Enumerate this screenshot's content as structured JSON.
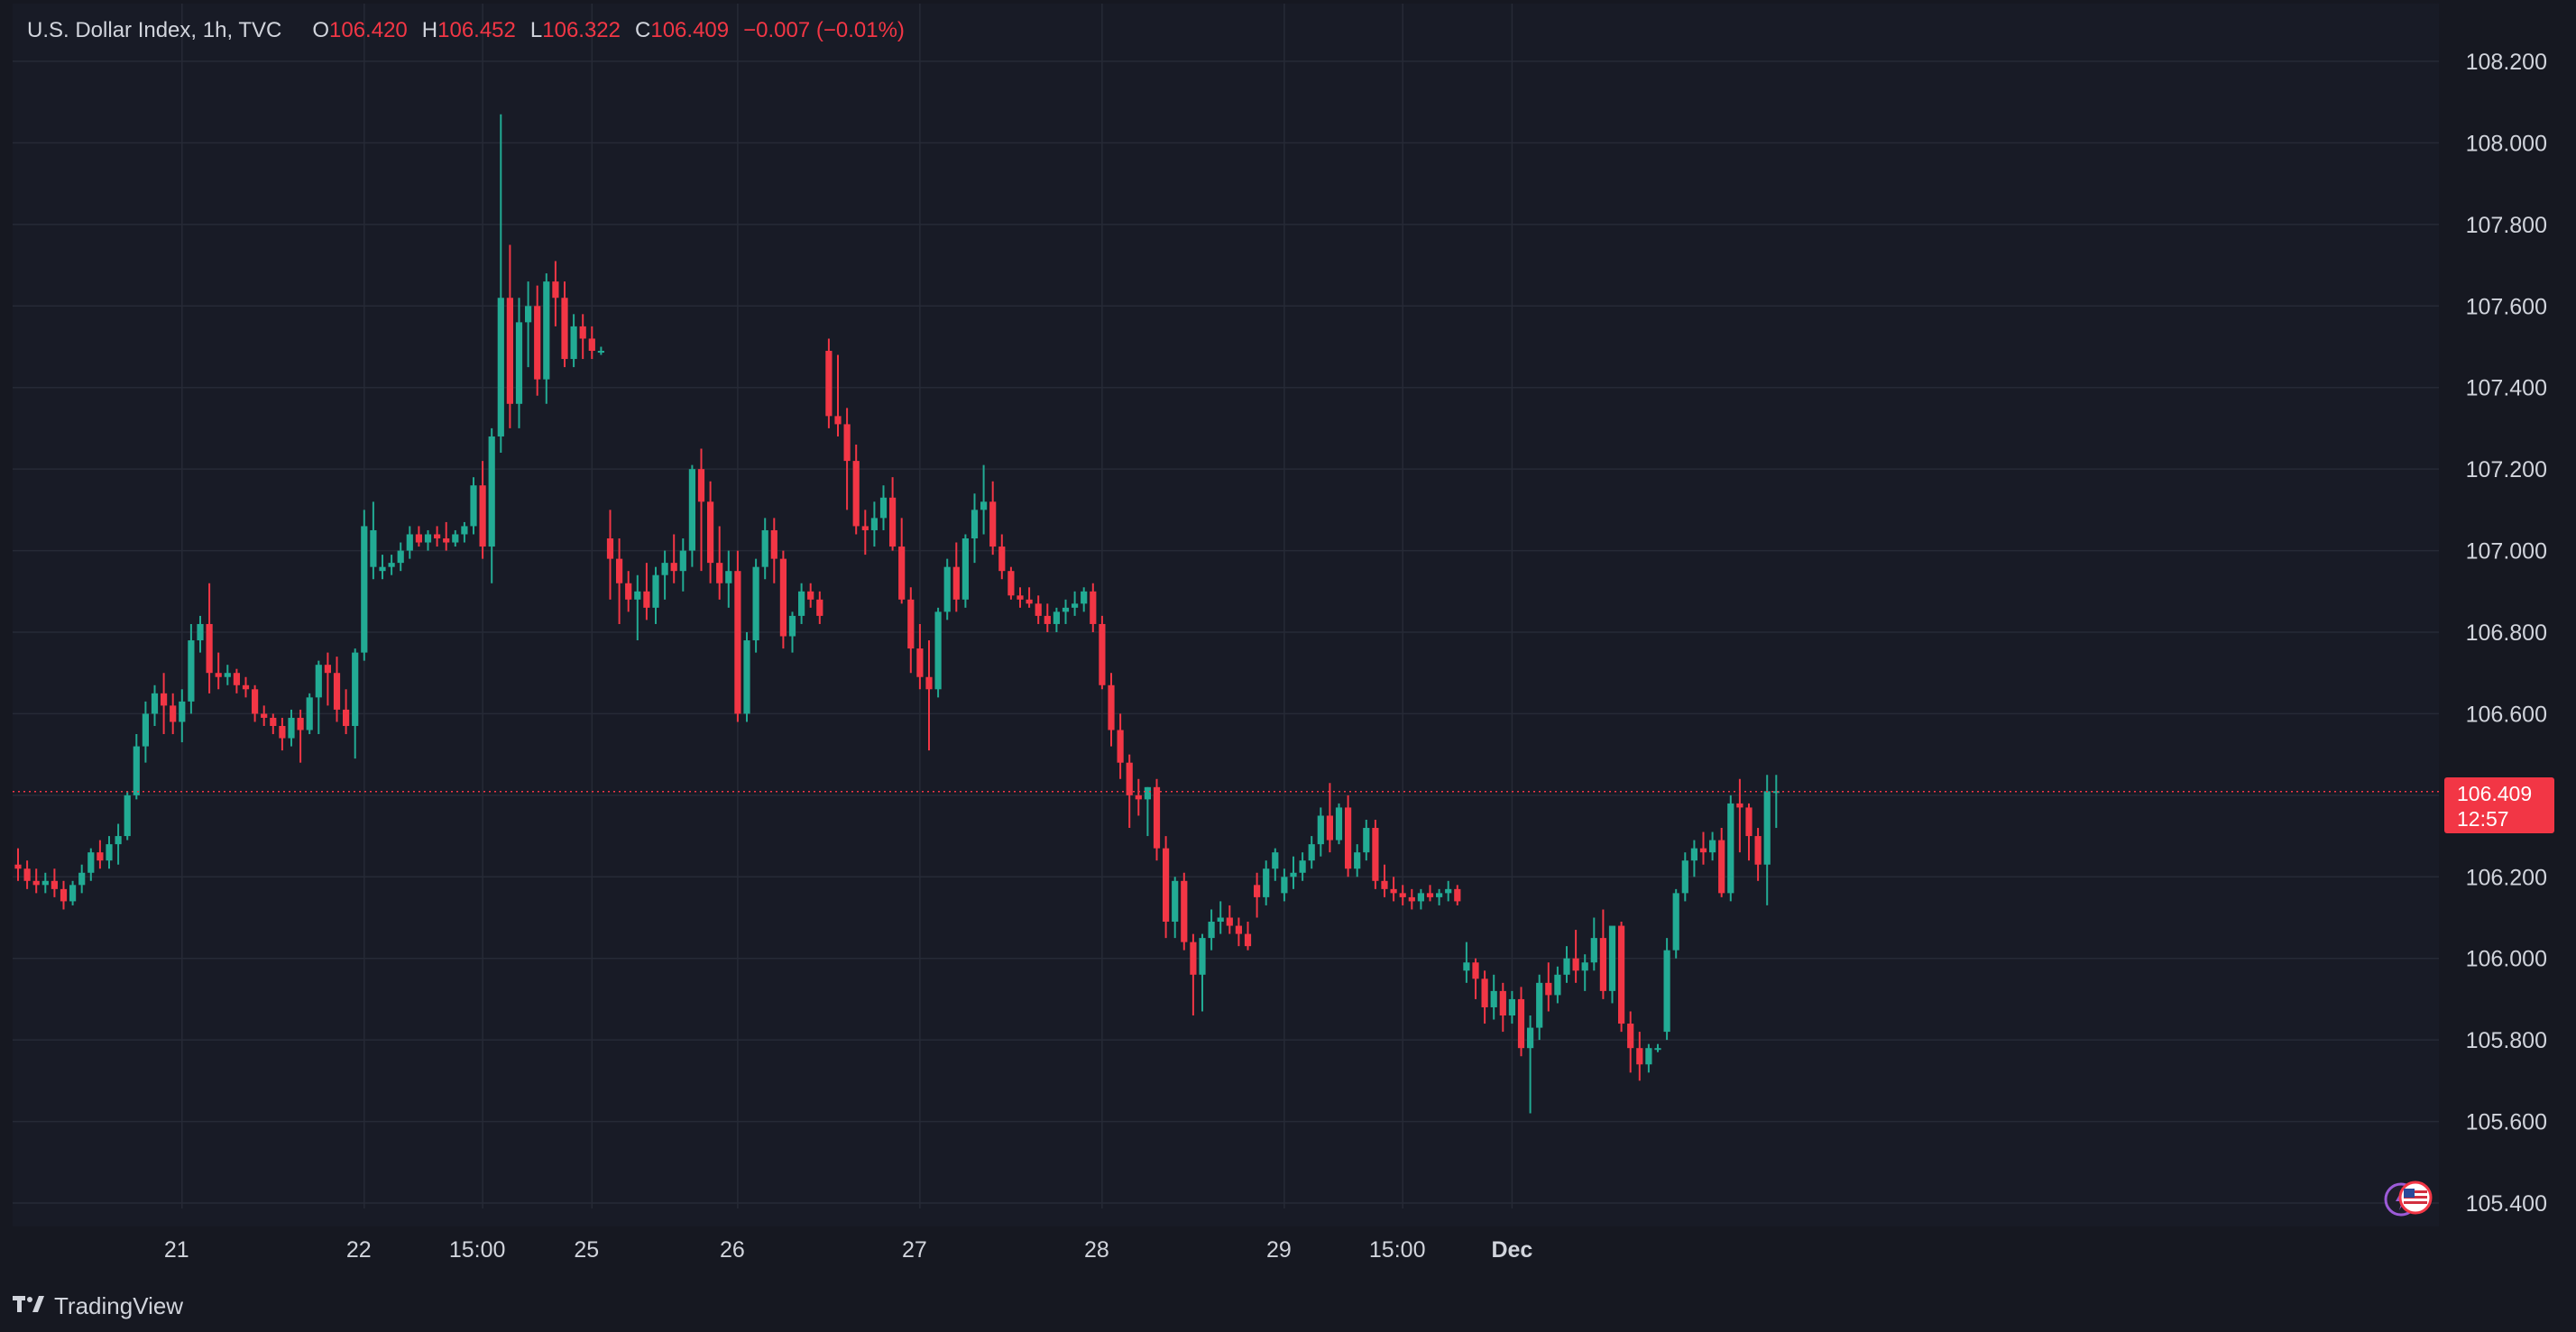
{
  "legend": {
    "symbol": "U.S. Dollar Index, 1h, TVC",
    "open_label": "O",
    "open": "106.420",
    "high_label": "H",
    "high": "106.452",
    "low_label": "L",
    "low": "106.322",
    "close_label": "C",
    "close": "106.409",
    "change": "−0.007 (−0.01%)"
  },
  "last_price": {
    "value": "106.409",
    "countdown": "12:57"
  },
  "brand": {
    "name": "TradingView"
  },
  "colors": {
    "background": "#161821",
    "up": "#22ab94",
    "down": "#f23645",
    "grid": "#262a36",
    "text": "#d1d4dc"
  },
  "icons": [
    "tradingview-logo-icon",
    "economic-events-icon",
    "us-flag-icon"
  ],
  "chart_data": {
    "type": "candlestick",
    "title": "U.S. Dollar Index, 1h, TVC",
    "x_tick_labels": [
      "21",
      "22",
      "15:00",
      "25",
      "26",
      "27",
      "28",
      "29",
      "15:00",
      "Dec"
    ],
    "x_tick_candle_index": [
      18,
      38,
      51,
      63,
      79,
      99,
      119,
      139,
      152,
      164
    ],
    "y_ticks": [
      105.4,
      105.6,
      105.8,
      106.0,
      106.2,
      106.4,
      106.6,
      106.8,
      107.0,
      107.2,
      107.4,
      107.6,
      107.8,
      108.0,
      108.2
    ],
    "y_tick_labels": [
      "105.400",
      "105.600",
      "105.800",
      "106.000",
      "106.200",
      "106.400",
      "106.600",
      "106.800",
      "107.000",
      "107.200",
      "107.400",
      "107.600",
      "107.800",
      "108.000",
      "108.200"
    ],
    "ylim": [
      105.3,
      108.4
    ],
    "last_price": 106.409,
    "candles": [
      [
        106.23,
        106.27,
        106.19,
        106.22
      ],
      [
        106.22,
        106.24,
        106.17,
        106.19
      ],
      [
        106.19,
        106.22,
        106.16,
        106.18
      ],
      [
        106.18,
        106.21,
        106.16,
        106.19
      ],
      [
        106.19,
        106.22,
        106.15,
        106.17
      ],
      [
        106.17,
        106.19,
        106.12,
        106.14
      ],
      [
        106.14,
        106.19,
        106.13,
        106.18
      ],
      [
        106.18,
        106.23,
        106.16,
        106.21
      ],
      [
        106.21,
        106.27,
        106.19,
        106.26
      ],
      [
        106.26,
        106.29,
        106.22,
        106.24
      ],
      [
        106.24,
        106.3,
        106.22,
        106.28
      ],
      [
        106.28,
        106.33,
        106.23,
        106.3
      ],
      [
        106.3,
        106.41,
        106.29,
        106.4
      ],
      [
        106.4,
        106.55,
        106.39,
        106.52
      ],
      [
        106.52,
        106.63,
        106.48,
        106.6
      ],
      [
        106.6,
        106.67,
        106.57,
        106.65
      ],
      [
        106.65,
        106.7,
        106.55,
        106.62
      ],
      [
        106.62,
        106.65,
        106.55,
        106.58
      ],
      [
        106.58,
        106.66,
        106.53,
        106.63
      ],
      [
        106.63,
        106.82,
        106.6,
        106.78
      ],
      [
        106.78,
        106.84,
        106.75,
        106.82
      ],
      [
        106.82,
        106.92,
        106.65,
        106.7
      ],
      [
        106.7,
        106.75,
        106.66,
        106.69
      ],
      [
        106.69,
        106.72,
        106.67,
        106.7
      ],
      [
        106.7,
        106.71,
        106.65,
        106.67
      ],
      [
        106.67,
        106.69,
        106.64,
        106.66
      ],
      [
        106.66,
        106.67,
        106.58,
        106.6
      ],
      [
        106.6,
        106.62,
        106.57,
        106.59
      ],
      [
        106.59,
        106.6,
        106.55,
        106.57
      ],
      [
        106.57,
        106.59,
        106.51,
        106.54
      ],
      [
        106.54,
        106.61,
        106.52,
        106.59
      ],
      [
        106.59,
        106.61,
        106.48,
        106.56
      ],
      [
        106.56,
        106.65,
        106.55,
        106.64
      ],
      [
        106.64,
        106.73,
        106.55,
        106.72
      ],
      [
        106.72,
        106.75,
        106.62,
        106.7
      ],
      [
        106.7,
        106.74,
        106.58,
        106.61
      ],
      [
        106.61,
        106.66,
        106.55,
        106.57
      ],
      [
        106.57,
        106.76,
        106.49,
        106.75
      ],
      [
        106.75,
        107.1,
        106.73,
        107.06
      ],
      [
        106.96,
        107.12,
        106.93,
        107.05
      ],
      [
        106.95,
        106.99,
        106.93,
        106.96
      ],
      [
        106.96,
        106.99,
        106.94,
        106.97
      ],
      [
        106.97,
        107.02,
        106.95,
        107.0
      ],
      [
        107.0,
        107.06,
        106.98,
        107.04
      ],
      [
        107.04,
        107.06,
        107.01,
        107.02
      ],
      [
        107.02,
        107.05,
        107.0,
        107.04
      ],
      [
        107.04,
        107.06,
        107.01,
        107.03
      ],
      [
        107.03,
        107.07,
        107.0,
        107.02
      ],
      [
        107.02,
        107.05,
        107.01,
        107.04
      ],
      [
        107.04,
        107.07,
        107.02,
        107.06
      ],
      [
        107.06,
        107.18,
        107.04,
        107.16
      ],
      [
        107.16,
        107.22,
        106.98,
        107.01
      ],
      [
        107.01,
        107.3,
        106.92,
        107.28
      ],
      [
        107.28,
        108.07,
        107.24,
        107.62
      ],
      [
        107.62,
        107.75,
        107.3,
        107.36
      ],
      [
        107.36,
        107.62,
        107.3,
        107.56
      ],
      [
        107.56,
        107.66,
        107.45,
        107.6
      ],
      [
        107.6,
        107.65,
        107.38,
        107.42
      ],
      [
        107.42,
        107.68,
        107.36,
        107.66
      ],
      [
        107.66,
        107.71,
        107.55,
        107.62
      ],
      [
        107.62,
        107.66,
        107.45,
        107.47
      ],
      [
        107.47,
        107.58,
        107.45,
        107.55
      ],
      [
        107.55,
        107.58,
        107.47,
        107.52
      ],
      [
        107.52,
        107.55,
        107.47,
        107.49
      ],
      [
        107.49,
        107.5,
        107.48,
        107.49
      ],
      [
        107.03,
        107.1,
        106.88,
        106.98
      ],
      [
        106.98,
        107.03,
        106.82,
        106.92
      ],
      [
        106.92,
        106.95,
        106.85,
        106.88
      ],
      [
        106.88,
        106.94,
        106.78,
        106.9
      ],
      [
        106.9,
        106.97,
        106.83,
        106.86
      ],
      [
        106.86,
        106.96,
        106.82,
        106.94
      ],
      [
        106.94,
        107.0,
        106.88,
        106.97
      ],
      [
        106.97,
        107.04,
        106.92,
        106.95
      ],
      [
        106.95,
        107.03,
        106.9,
        107.0
      ],
      [
        107.0,
        107.21,
        106.96,
        107.2
      ],
      [
        107.2,
        107.25,
        106.95,
        107.12
      ],
      [
        107.12,
        107.17,
        106.92,
        106.97
      ],
      [
        106.97,
        107.06,
        106.88,
        106.92
      ],
      [
        106.92,
        107.0,
        106.86,
        106.95
      ],
      [
        106.95,
        107.0,
        106.58,
        106.6
      ],
      [
        106.6,
        106.8,
        106.58,
        106.78
      ],
      [
        106.78,
        106.98,
        106.75,
        106.96
      ],
      [
        106.96,
        107.08,
        106.93,
        107.05
      ],
      [
        107.05,
        107.08,
        106.92,
        106.98
      ],
      [
        106.98,
        107.0,
        106.76,
        106.79
      ],
      [
        106.79,
        106.85,
        106.75,
        106.84
      ],
      [
        106.84,
        106.92,
        106.82,
        106.9
      ],
      [
        106.9,
        106.92,
        106.86,
        106.88
      ],
      [
        106.88,
        106.9,
        106.82,
        106.84
      ],
      [
        107.49,
        107.52,
        107.3,
        107.33
      ],
      [
        107.33,
        107.48,
        107.28,
        107.31
      ],
      [
        107.31,
        107.35,
        107.1,
        107.22
      ],
      [
        107.22,
        107.26,
        107.04,
        107.06
      ],
      [
        107.06,
        107.1,
        106.99,
        107.05
      ],
      [
        107.05,
        107.12,
        107.01,
        107.08
      ],
      [
        107.08,
        107.16,
        107.05,
        107.13
      ],
      [
        107.13,
        107.18,
        107.0,
        107.01
      ],
      [
        107.01,
        107.08,
        106.87,
        106.88
      ],
      [
        106.88,
        106.91,
        106.7,
        106.76
      ],
      [
        106.76,
        106.82,
        106.66,
        106.69
      ],
      [
        106.69,
        106.78,
        106.51,
        106.66
      ],
      [
        106.66,
        106.86,
        106.64,
        106.85
      ],
      [
        106.85,
        106.98,
        106.83,
        106.96
      ],
      [
        106.96,
        107.02,
        106.85,
        106.88
      ],
      [
        106.88,
        107.04,
        106.86,
        107.03
      ],
      [
        107.03,
        107.14,
        106.97,
        107.1
      ],
      [
        107.1,
        107.21,
        107.04,
        107.12
      ],
      [
        107.12,
        107.17,
        106.99,
        107.01
      ],
      [
        107.01,
        107.04,
        106.93,
        106.95
      ],
      [
        106.95,
        106.96,
        106.88,
        106.89
      ],
      [
        106.89,
        106.91,
        106.86,
        106.88
      ],
      [
        106.88,
        106.91,
        106.86,
        106.87
      ],
      [
        106.87,
        106.89,
        106.82,
        106.84
      ],
      [
        106.84,
        106.87,
        106.8,
        106.82
      ],
      [
        106.82,
        106.86,
        106.8,
        106.85
      ],
      [
        106.85,
        106.88,
        106.82,
        106.86
      ],
      [
        106.86,
        106.9,
        106.84,
        106.87
      ],
      [
        106.87,
        106.91,
        106.85,
        106.9
      ],
      [
        106.9,
        106.92,
        106.8,
        106.82
      ],
      [
        106.82,
        106.84,
        106.66,
        106.67
      ],
      [
        106.67,
        106.7,
        106.52,
        106.56
      ],
      [
        106.56,
        106.6,
        106.44,
        106.48
      ],
      [
        106.48,
        106.5,
        106.32,
        106.4
      ],
      [
        106.4,
        106.44,
        106.35,
        106.39
      ],
      [
        106.39,
        106.42,
        106.3,
        106.42
      ],
      [
        106.42,
        106.44,
        106.24,
        106.27
      ],
      [
        106.27,
        106.3,
        106.05,
        106.09
      ],
      [
        106.09,
        106.2,
        106.05,
        106.19
      ],
      [
        106.19,
        106.21,
        106.02,
        106.04
      ],
      [
        106.04,
        106.06,
        105.86,
        105.96
      ],
      [
        105.96,
        106.06,
        105.87,
        106.05
      ],
      [
        106.05,
        106.12,
        106.02,
        106.09
      ],
      [
        106.09,
        106.14,
        106.06,
        106.1
      ],
      [
        106.1,
        106.13,
        106.06,
        106.08
      ],
      [
        106.08,
        106.1,
        106.03,
        106.06
      ],
      [
        106.06,
        106.09,
        106.02,
        106.03
      ],
      [
        106.18,
        106.21,
        106.1,
        106.15
      ],
      [
        106.15,
        106.24,
        106.13,
        106.22
      ],
      [
        106.22,
        106.27,
        106.19,
        106.26
      ],
      [
        106.16,
        106.22,
        106.14,
        106.2
      ],
      [
        106.2,
        106.25,
        106.17,
        106.21
      ],
      [
        106.21,
        106.26,
        106.19,
        106.24
      ],
      [
        106.24,
        106.3,
        106.22,
        106.28
      ],
      [
        106.28,
        106.37,
        106.25,
        106.35
      ],
      [
        106.35,
        106.43,
        106.26,
        106.29
      ],
      [
        106.29,
        106.38,
        106.28,
        106.37
      ],
      [
        106.37,
        106.4,
        106.2,
        106.22
      ],
      [
        106.22,
        106.28,
        106.2,
        106.26
      ],
      [
        106.26,
        106.34,
        106.24,
        106.32
      ],
      [
        106.32,
        106.34,
        106.17,
        106.19
      ],
      [
        106.19,
        106.23,
        106.15,
        106.17
      ],
      [
        106.17,
        106.2,
        106.14,
        106.16
      ],
      [
        106.16,
        106.18,
        106.13,
        106.15
      ],
      [
        106.15,
        106.17,
        106.12,
        106.14
      ],
      [
        106.14,
        106.17,
        106.12,
        106.16
      ],
      [
        106.16,
        106.18,
        106.14,
        106.15
      ],
      [
        106.15,
        106.17,
        106.13,
        106.16
      ],
      [
        106.16,
        106.19,
        106.14,
        106.17
      ],
      [
        106.17,
        106.18,
        106.13,
        106.14
      ],
      [
        105.97,
        106.04,
        105.94,
        105.99
      ],
      [
        105.99,
        106.0,
        105.9,
        105.95
      ],
      [
        105.95,
        105.97,
        105.84,
        105.88
      ],
      [
        105.88,
        105.96,
        105.85,
        105.92
      ],
      [
        105.92,
        105.94,
        105.82,
        105.86
      ],
      [
        105.86,
        105.92,
        105.84,
        105.9
      ],
      [
        105.9,
        105.93,
        105.76,
        105.78
      ],
      [
        105.78,
        105.86,
        105.62,
        105.83
      ],
      [
        105.83,
        105.96,
        105.8,
        105.94
      ],
      [
        105.94,
        105.99,
        105.87,
        105.91
      ],
      [
        105.91,
        105.98,
        105.89,
        105.96
      ],
      [
        105.96,
        106.03,
        105.94,
        106.0
      ],
      [
        106.0,
        106.07,
        105.94,
        105.97
      ],
      [
        105.97,
        106.01,
        105.92,
        105.99
      ],
      [
        105.99,
        106.1,
        105.97,
        106.05
      ],
      [
        106.05,
        106.12,
        105.9,
        105.92
      ],
      [
        105.92,
        106.07,
        105.89,
        106.08
      ],
      [
        106.08,
        106.09,
        105.82,
        105.84
      ],
      [
        105.84,
        105.87,
        105.72,
        105.78
      ],
      [
        105.78,
        105.82,
        105.7,
        105.74
      ],
      [
        105.74,
        105.79,
        105.72,
        105.78
      ],
      [
        105.78,
        105.79,
        105.77,
        105.78
      ],
      [
        105.82,
        106.05,
        105.8,
        106.02
      ],
      [
        106.02,
        106.17,
        106.0,
        106.16
      ],
      [
        106.16,
        106.26,
        106.14,
        106.24
      ],
      [
        106.24,
        106.29,
        106.2,
        106.27
      ],
      [
        106.27,
        106.31,
        106.23,
        106.26
      ],
      [
        106.26,
        106.31,
        106.24,
        106.29
      ],
      [
        106.29,
        106.32,
        106.15,
        106.16
      ],
      [
        106.16,
        106.4,
        106.14,
        106.38
      ],
      [
        106.38,
        106.44,
        106.26,
        106.37
      ],
      [
        106.37,
        106.38,
        106.24,
        106.3
      ],
      [
        106.3,
        106.32,
        106.19,
        106.23
      ],
      [
        106.23,
        106.45,
        106.13,
        106.41
      ],
      [
        106.41,
        106.45,
        106.32,
        106.41
      ]
    ]
  }
}
